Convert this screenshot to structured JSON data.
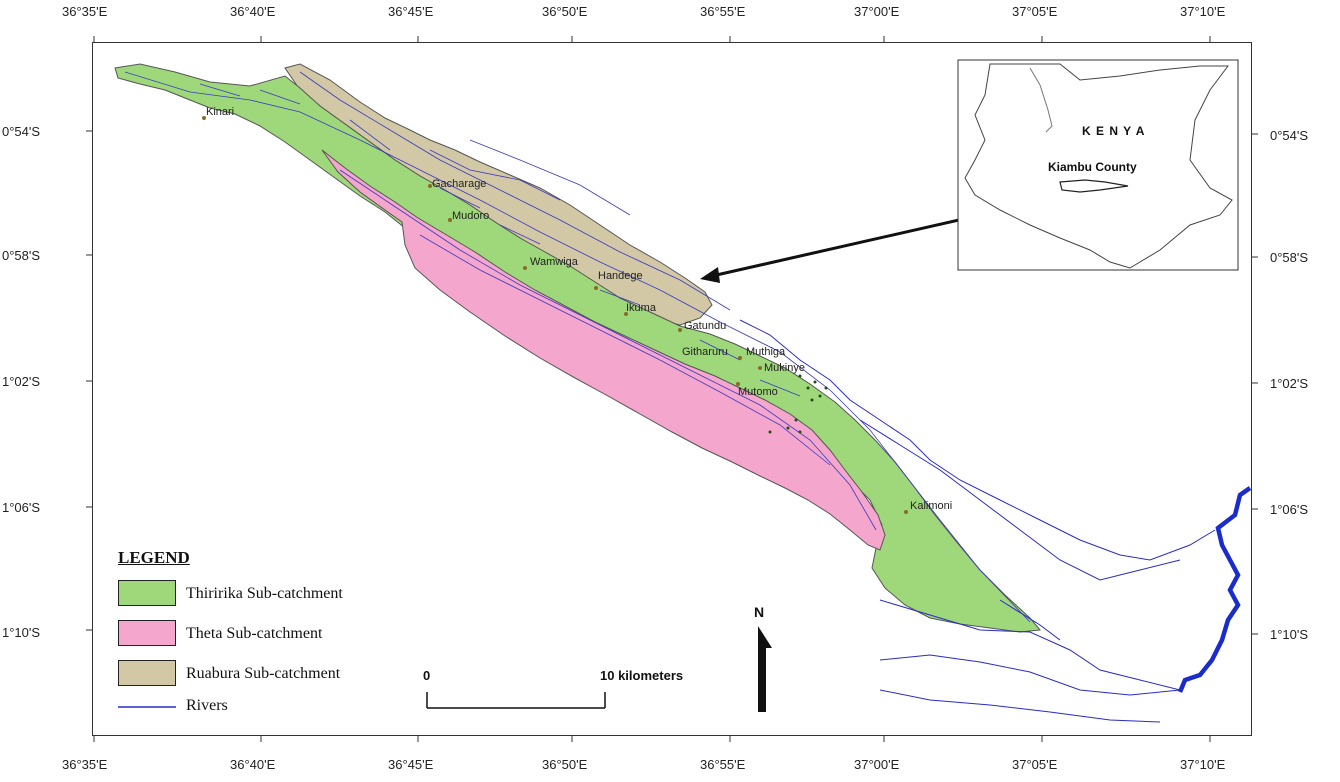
{
  "map": {
    "coords_top": [
      "36°35'E",
      "36°40'E",
      "36°45'E",
      "36°50'E",
      "36°55'E",
      "37°00'E",
      "37°05'E",
      "37°10'E"
    ],
    "coords_bottom": [
      "36°35'E",
      "36°40'E",
      "36°45'E",
      "36°50'E",
      "36°55'E",
      "37°00'E",
      "37°05'E",
      "37°10'E"
    ],
    "coords_left": [
      "0°54'S",
      "0°58'S",
      "1°02'S",
      "1°06'S",
      "1°10'S"
    ],
    "coords_right": [
      "0°54'S",
      "0°58'S",
      "1°02'S",
      "1°06'S",
      "1°10'S"
    ],
    "places": [
      "Kinari",
      "Gacharage",
      "Mudoro",
      "Wamwiga",
      "Handege",
      "Ikuma",
      "Gatundu",
      "Githaruru",
      "Muthiga",
      "Mukinye",
      "Mutomo",
      "Kalimoni"
    ],
    "inset": {
      "country": "K E N Y A",
      "county": "Kiambu County"
    },
    "legend": {
      "title": "LEGEND",
      "items": [
        {
          "label": "Thiririka Sub-catchment",
          "color": "#9fd87a"
        },
        {
          "label": "Theta Sub-catchment",
          "color": "#f4a6cc"
        },
        {
          "label": "Ruabura Sub-catchment",
          "color": "#d2c8a6"
        },
        {
          "label": "Rivers",
          "color": "#2a2acc"
        }
      ]
    },
    "scale": {
      "start": "0",
      "end": "10 kilometers"
    },
    "north": "N"
  }
}
